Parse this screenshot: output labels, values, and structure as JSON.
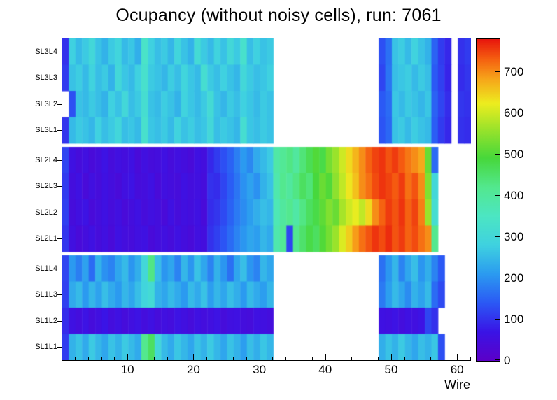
{
  "chart_data": {
    "type": "heatmap",
    "title": "Ocupancy (without noisy cells), run: 7061",
    "xlabel": "Wire",
    "n_wires": 62,
    "xticks": [
      10,
      20,
      30,
      40,
      50,
      60
    ],
    "zmin": 0,
    "zmax": 780,
    "zticks": [
      0,
      100,
      200,
      300,
      400,
      500,
      600,
      700
    ],
    "row_order": "top-to-bottom",
    "palette": [
      {
        "t": 0.0,
        "c": "#5c00c8"
      },
      {
        "t": 0.09,
        "c": "#3a14e6"
      },
      {
        "t": 0.18,
        "c": "#2b59f5"
      },
      {
        "t": 0.27,
        "c": "#2b9bf0"
      },
      {
        "t": 0.36,
        "c": "#3fd2e0"
      },
      {
        "t": 0.45,
        "c": "#4ce6c3"
      },
      {
        "t": 0.54,
        "c": "#53e88e"
      },
      {
        "t": 0.63,
        "c": "#47d83b"
      },
      {
        "t": 0.72,
        "c": "#9be32b"
      },
      {
        "t": 0.8,
        "c": "#eded1f"
      },
      {
        "t": 0.88,
        "c": "#f7a11a"
      },
      {
        "t": 0.94,
        "c": "#f55d10"
      },
      {
        "t": 1.0,
        "c": "#e8150d"
      }
    ],
    "rows": [
      {
        "label": "SL3L4",
        "values": [
          100,
          280,
          250,
          270,
          300,
          260,
          240,
          270,
          290,
          250,
          265,
          235,
          340,
          280,
          255,
          270,
          245,
          290,
          260,
          240,
          310,
          270,
          250,
          285,
          260,
          300,
          270,
          330,
          255,
          280,
          260,
          270,
          null,
          null,
          null,
          null,
          null,
          null,
          null,
          null,
          null,
          null,
          null,
          null,
          null,
          null,
          null,
          null,
          130,
          165,
          260,
          275,
          250,
          285,
          260,
          240,
          150,
          110,
          90,
          null,
          100,
          110
        ]
      },
      {
        "label": "SL3L3",
        "values": [
          110,
          260,
          275,
          250,
          285,
          255,
          270,
          240,
          300,
          265,
          250,
          280,
          330,
          270,
          260,
          245,
          275,
          255,
          290,
          265,
          250,
          320,
          270,
          255,
          280,
          260,
          245,
          300,
          270,
          255,
          265,
          280,
          null,
          null,
          null,
          null,
          null,
          null,
          null,
          null,
          null,
          null,
          null,
          null,
          null,
          null,
          null,
          null,
          120,
          170,
          255,
          265,
          275,
          250,
          270,
          255,
          140,
          115,
          85,
          null,
          95,
          105
        ]
      },
      {
        "label": "SL3L2",
        "values": [
          null,
          130,
          260,
          250,
          270,
          255,
          240,
          280,
          260,
          300,
          255,
          270,
          320,
          260,
          250,
          275,
          260,
          240,
          285,
          265,
          250,
          270,
          310,
          260,
          245,
          270,
          255,
          280,
          265,
          250,
          270,
          260,
          null,
          null,
          null,
          null,
          null,
          null,
          null,
          null,
          null,
          null,
          null,
          null,
          null,
          null,
          null,
          null,
          140,
          160,
          265,
          250,
          270,
          260,
          245,
          265,
          150,
          120,
          95,
          null,
          105,
          100
        ]
      },
      {
        "label": "SL3L1",
        "values": [
          105,
          250,
          270,
          260,
          245,
          280,
          255,
          270,
          295,
          255,
          265,
          250,
          330,
          265,
          255,
          270,
          250,
          285,
          260,
          275,
          255,
          265,
          300,
          255,
          270,
          260,
          245,
          320,
          265,
          255,
          270,
          260,
          null,
          null,
          null,
          null,
          null,
          null,
          null,
          null,
          null,
          null,
          null,
          null,
          null,
          null,
          null,
          null,
          135,
          155,
          260,
          270,
          250,
          275,
          260,
          250,
          145,
          110,
          90,
          null,
          100,
          95
        ]
      },
      {
        "label": "SL2L4",
        "values": [
          120,
          60,
          45,
          55,
          40,
          50,
          65,
          45,
          55,
          50,
          60,
          40,
          55,
          45,
          50,
          60,
          45,
          55,
          50,
          40,
          60,
          50,
          90,
          110,
          130,
          150,
          180,
          210,
          190,
          230,
          250,
          270,
          390,
          410,
          430,
          400,
          440,
          470,
          500,
          480,
          530,
          560,
          600,
          640,
          670,
          700,
          730,
          750,
          760,
          740,
          755,
          735,
          715,
          700,
          680,
          520,
          160,
          null,
          null,
          null,
          null,
          null
        ]
      },
      {
        "label": "SL2L3",
        "values": [
          110,
          50,
          60,
          40,
          55,
          45,
          60,
          50,
          40,
          55,
          65,
          45,
          50,
          60,
          40,
          55,
          50,
          45,
          60,
          50,
          55,
          45,
          100,
          95,
          120,
          145,
          170,
          200,
          220,
          200,
          240,
          260,
          380,
          420,
          400,
          430,
          460,
          440,
          490,
          520,
          500,
          550,
          590,
          630,
          660,
          700,
          720,
          745,
          760,
          750,
          735,
          755,
          720,
          740,
          700,
          540,
          300,
          null,
          null,
          null,
          null,
          null
        ]
      },
      {
        "label": "SL2L2",
        "values": [
          115,
          45,
          55,
          65,
          40,
          50,
          60,
          45,
          55,
          40,
          50,
          60,
          45,
          55,
          50,
          40,
          60,
          45,
          55,
          50,
          60,
          40,
          95,
          105,
          125,
          150,
          175,
          195,
          215,
          235,
          255,
          245,
          370,
          400,
          420,
          390,
          430,
          460,
          480,
          510,
          540,
          520,
          570,
          600,
          620,
          590,
          640,
          700,
          730,
          755,
          740,
          760,
          730,
          750,
          710,
          560,
          320,
          null,
          null,
          null,
          null,
          null
        ]
      },
      {
        "label": "SL2L1",
        "values": [
          105,
          55,
          40,
          50,
          60,
          45,
          55,
          40,
          60,
          50,
          45,
          55,
          60,
          40,
          50,
          55,
          45,
          60,
          50,
          40,
          55,
          50,
          100,
          115,
          135,
          160,
          185,
          205,
          225,
          215,
          245,
          230,
          380,
          410,
          120,
          420,
          450,
          480,
          460,
          500,
          530,
          560,
          610,
          650,
          690,
          720,
          740,
          760,
          745,
          765,
          740,
          755,
          730,
          745,
          720,
          700,
          420,
          null,
          null,
          null,
          null,
          null
        ]
      },
      {
        "label": "SL1L4",
        "values": [
          120,
          210,
          180,
          220,
          160,
          240,
          200,
          185,
          225,
          250,
          205,
          235,
          300,
          430,
          255,
          205,
          225,
          185,
          245,
          205,
          260,
          225,
          185,
          240,
          205,
          165,
          225,
          255,
          205,
          185,
          245,
          225,
          null,
          null,
          null,
          null,
          null,
          null,
          null,
          null,
          null,
          null,
          null,
          null,
          null,
          null,
          null,
          null,
          165,
          205,
          245,
          185,
          225,
          255,
          205,
          235,
          185,
          140,
          null,
          null,
          null,
          null
        ]
      },
      {
        "label": "SL1L3",
        "values": [
          115,
          230,
          250,
          210,
          245,
          220,
          255,
          230,
          210,
          245,
          225,
          255,
          290,
          310,
          240,
          225,
          250,
          230,
          210,
          250,
          230,
          260,
          215,
          245,
          225,
          255,
          235,
          210,
          250,
          230,
          215,
          245,
          null,
          null,
          null,
          null,
          null,
          null,
          null,
          null,
          null,
          null,
          null,
          null,
          null,
          null,
          null,
          null,
          175,
          215,
          250,
          225,
          195,
          240,
          220,
          250,
          160,
          125,
          null,
          null,
          null,
          null
        ]
      },
      {
        "label": "SL1L2",
        "values": [
          95,
          60,
          50,
          65,
          45,
          55,
          70,
          50,
          60,
          45,
          55,
          65,
          50,
          60,
          45,
          55,
          50,
          65,
          55,
          45,
          60,
          50,
          55,
          65,
          45,
          55,
          60,
          50,
          45,
          60,
          55,
          50,
          null,
          null,
          null,
          null,
          null,
          null,
          null,
          null,
          null,
          null,
          null,
          null,
          null,
          null,
          null,
          null,
          60,
          55,
          65,
          50,
          60,
          55,
          65,
          120,
          100,
          null,
          null,
          null,
          null,
          null
        ]
      },
      {
        "label": "SL1L1",
        "values": [
          110,
          240,
          260,
          230,
          270,
          245,
          225,
          260,
          240,
          270,
          250,
          230,
          420,
          460,
          300,
          250,
          230,
          265,
          245,
          225,
          260,
          240,
          270,
          245,
          225,
          260,
          240,
          215,
          255,
          235,
          265,
          245,
          null,
          null,
          null,
          null,
          null,
          null,
          null,
          null,
          null,
          null,
          null,
          null,
          null,
          null,
          null,
          null,
          235,
          260,
          240,
          270,
          245,
          225,
          255,
          240,
          265,
          130,
          null,
          null,
          null,
          null
        ]
      }
    ]
  }
}
